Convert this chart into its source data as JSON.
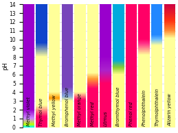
{
  "indicators": [
    {
      "name": "Methyl violet",
      "color_stops": [
        [
          0.0,
          "#00ffee"
        ],
        [
          0.3,
          "#bbff00"
        ],
        [
          1.0,
          "#cc88ff"
        ],
        [
          2.0,
          "#9900cc"
        ],
        [
          14.0,
          "#9900cc"
        ]
      ]
    },
    {
      "name": "Thymol blue",
      "color_stops": [
        [
          0.0,
          "#ff0066"
        ],
        [
          1.2,
          "#ff0066"
        ],
        [
          2.5,
          "#ffff99"
        ],
        [
          8.0,
          "#ffff99"
        ],
        [
          9.6,
          "#1144cc"
        ],
        [
          14.0,
          "#1144cc"
        ]
      ]
    },
    {
      "name": "Methyl yellow",
      "color_stops": [
        [
          0.0,
          "#ffff99"
        ],
        [
          2.9,
          "#ffff99"
        ],
        [
          3.3,
          "#ff9900"
        ],
        [
          4.0,
          "#ffff99"
        ],
        [
          14.0,
          "#ffff99"
        ]
      ]
    },
    {
      "name": "Bromphenol blue",
      "color_stops": [
        [
          0.0,
          "#ffff99"
        ],
        [
          3.0,
          "#ffff99"
        ],
        [
          3.5,
          "#88aadd"
        ],
        [
          4.6,
          "#7744bb"
        ],
        [
          14.0,
          "#7744bb"
        ]
      ]
    },
    {
      "name": "Methyl orange",
      "color_stops": [
        [
          0.0,
          "#ff0066"
        ],
        [
          3.1,
          "#ff0066"
        ],
        [
          4.0,
          "#ffff99"
        ],
        [
          4.4,
          "#ffff99"
        ],
        [
          14.0,
          "#ffff99"
        ]
      ]
    },
    {
      "name": "Methyl red",
      "color_stops": [
        [
          0.0,
          "#ff0066"
        ],
        [
          4.4,
          "#ff0066"
        ],
        [
          5.5,
          "#ff9933"
        ],
        [
          6.2,
          "#ffff99"
        ],
        [
          14.0,
          "#ffff99"
        ]
      ]
    },
    {
      "name": "Litmus",
      "color_stops": [
        [
          0.0,
          "#ff0066"
        ],
        [
          5.0,
          "#ff0066"
        ],
        [
          6.5,
          "#aa22cc"
        ],
        [
          8.0,
          "#9900cc"
        ],
        [
          14.0,
          "#9900cc"
        ]
      ]
    },
    {
      "name": "Bromthymol blue",
      "color_stops": [
        [
          0.0,
          "#ffff88"
        ],
        [
          6.0,
          "#ffff88"
        ],
        [
          6.8,
          "#88cc33"
        ],
        [
          7.6,
          "#00aadd"
        ],
        [
          14.0,
          "#00aadd"
        ]
      ]
    },
    {
      "name": "Phenol red",
      "color_stops": [
        [
          0.0,
          "#ff0066"
        ],
        [
          6.8,
          "#ff0066"
        ],
        [
          8.4,
          "#ff0066"
        ],
        [
          14.0,
          "#ff0066"
        ]
      ]
    },
    {
      "name": "Phenolphthalein",
      "color_stops": [
        [
          0.0,
          "#ffff99"
        ],
        [
          8.2,
          "#ffff99"
        ],
        [
          9.5,
          "#ff3388"
        ],
        [
          10.0,
          "#ff0066"
        ],
        [
          14.0,
          "#ff0066"
        ]
      ]
    },
    {
      "name": "Thymolphthalein",
      "color_stops": [
        [
          0.0,
          "#ffff99"
        ],
        [
          9.3,
          "#ffff99"
        ],
        [
          10.0,
          "#66bbff"
        ],
        [
          10.5,
          "#2288ff"
        ],
        [
          14.0,
          "#2288ff"
        ]
      ]
    },
    {
      "name": "Alizarin yellow",
      "color_stops": [
        [
          0.0,
          "#ffff99"
        ],
        [
          10.1,
          "#ffff99"
        ],
        [
          11.0,
          "#ff8833"
        ],
        [
          12.1,
          "#ff3311"
        ],
        [
          14.0,
          "#cc0044"
        ]
      ]
    }
  ],
  "ph_min": 0,
  "ph_max": 14,
  "ylabel": "pH",
  "yticks": [
    0,
    1,
    2,
    3,
    4,
    5,
    6,
    7,
    8,
    9,
    10,
    11,
    12,
    13,
    14
  ],
  "bg_color": "#ffffff",
  "grid_color": "#cccccc",
  "label_fontsize": 4.8,
  "axis_fontsize": 5.5
}
